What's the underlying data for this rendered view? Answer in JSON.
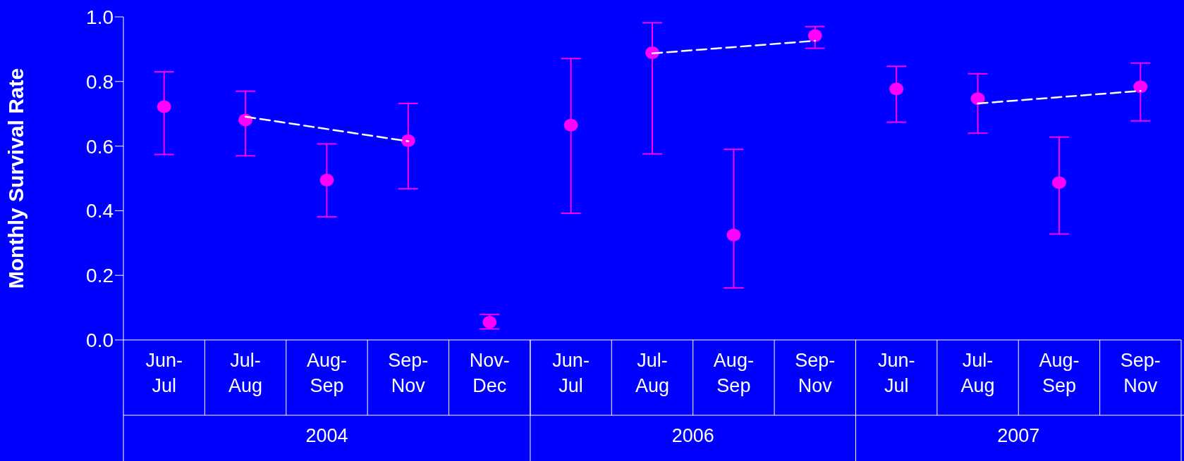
{
  "chart_data": {
    "type": "scatter",
    "ylabel": "Monthly Survival Rate",
    "categories": [
      "Jun-Jul",
      "Jul-Aug",
      "Aug-Sep",
      "Sep-Nov",
      "Nov-Dec",
      "Jun-Jul",
      "Jul-Aug",
      "Aug-Sep",
      "Sep-Nov",
      "Jun-Jul",
      "Jul-Aug",
      "Aug-Sep",
      "Sep-Nov"
    ],
    "ylim": [
      0,
      1
    ],
    "yticks": [
      {
        "value": 0,
        "label": "0.0"
      },
      {
        "value": 0.2,
        "label": "0.2"
      },
      {
        "value": 0.4,
        "label": "0.4"
      },
      {
        "value": 0.6,
        "label": "0.6"
      },
      {
        "value": 0.8,
        "label": "0.8"
      },
      {
        "value": 1,
        "label": "1.0"
      }
    ],
    "marker": "circle",
    "series": [
      {
        "type": "scatter",
        "color": "#ff00ff",
        "values": [
          0.722,
          0.681,
          0.495,
          0.617,
          0.055,
          0.665,
          0.889,
          0.325,
          0.942,
          0.777,
          0.747,
          0.487,
          0.784
        ],
        "errors": [
          [
            0.574,
            0.83
          ],
          [
            0.57,
            0.77
          ],
          [
            0.381,
            0.607
          ],
          [
            0.468,
            0.732
          ],
          [
            0.034,
            0.079
          ],
          [
            0.392,
            0.871
          ],
          [
            0.576,
            0.982
          ],
          [
            0.161,
            0.59
          ],
          [
            0.903,
            0.97
          ],
          [
            0.674,
            0.847
          ],
          [
            0.64,
            0.824
          ],
          [
            0.328,
            0.628
          ],
          [
            0.678,
            0.857
          ]
        ]
      },
      {
        "type": "line",
        "color": "#ffffff",
        "line_style": "dashed",
        "marker": "none",
        "values": [
          null,
          0.691,
          null,
          0.615,
          null,
          null,
          null,
          null,
          null,
          null,
          null,
          null,
          null
        ]
      },
      {
        "type": "line",
        "color": "#ffffff",
        "line_style": "dashed",
        "marker": "none",
        "values": [
          null,
          null,
          null,
          null,
          null,
          null,
          0.887,
          null,
          0.926,
          null,
          null,
          null,
          null
        ]
      },
      {
        "type": "line",
        "color": "#ffffff",
        "line_style": "dashed",
        "marker": "none",
        "values": [
          null,
          null,
          null,
          null,
          null,
          null,
          null,
          null,
          null,
          null,
          0.732,
          null,
          0.771
        ]
      }
    ],
    "annotations": [
      "2004",
      "2006",
      "2007"
    ]
  }
}
